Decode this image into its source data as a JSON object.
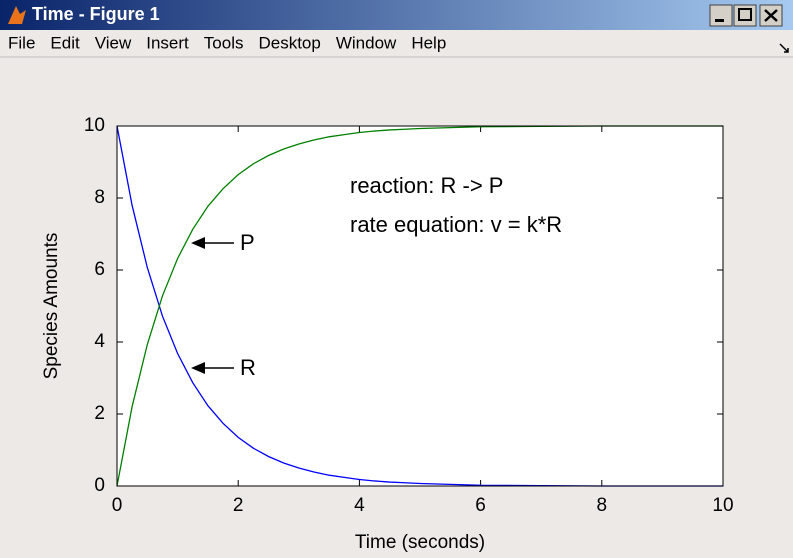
{
  "window": {
    "title": "Time - Figure 1",
    "menu": [
      "File",
      "Edit",
      "View",
      "Insert",
      "Tools",
      "Desktop",
      "Window",
      "Help"
    ]
  },
  "chart_data": {
    "type": "line",
    "xlabel": "Time (seconds)",
    "ylabel": "Species Amounts",
    "annotations": [
      "reaction: R -> P",
      "rate equation: v = k*R"
    ],
    "arrow_labels": [
      "P",
      "R"
    ],
    "x": [
      0,
      0.25,
      0.5,
      0.75,
      1,
      1.25,
      1.5,
      1.75,
      2,
      2.25,
      2.5,
      2.75,
      3,
      3.25,
      3.5,
      3.75,
      4,
      4.25,
      4.5,
      4.75,
      5,
      6,
      7,
      8,
      9,
      10
    ],
    "series": [
      {
        "name": "R",
        "color": "#0000ff",
        "values": [
          10,
          7.79,
          6.07,
          4.72,
          3.68,
          2.87,
          2.23,
          1.74,
          1.35,
          1.05,
          0.82,
          0.64,
          0.5,
          0.39,
          0.3,
          0.24,
          0.18,
          0.14,
          0.11,
          0.09,
          0.07,
          0.02,
          0.01,
          0,
          0,
          0
        ]
      },
      {
        "name": "P",
        "color": "#008000",
        "values": [
          0,
          2.21,
          3.93,
          5.28,
          6.32,
          7.13,
          7.77,
          8.26,
          8.65,
          8.95,
          9.18,
          9.36,
          9.5,
          9.61,
          9.7,
          9.76,
          9.82,
          9.86,
          9.89,
          9.91,
          9.93,
          9.98,
          9.99,
          10,
          10,
          10
        ]
      }
    ],
    "xlim": [
      0,
      10
    ],
    "xticks": [
      0,
      2,
      4,
      6,
      8,
      10
    ],
    "ylim": [
      0,
      10
    ],
    "yticks": [
      0,
      2,
      4,
      6,
      8,
      10
    ],
    "grid": false
  }
}
